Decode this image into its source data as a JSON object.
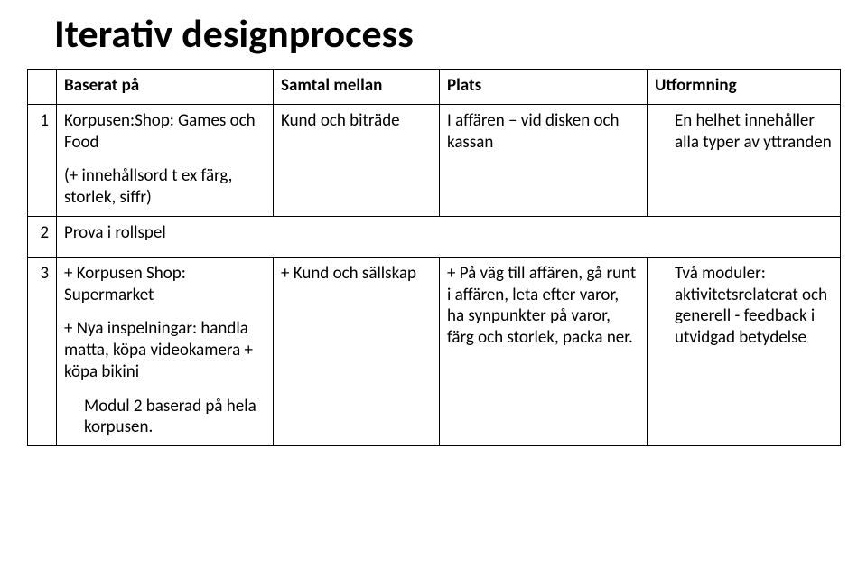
{
  "title": "Iterativ designprocess",
  "headers": {
    "num": "",
    "based": "Baserat på",
    "conv": "Samtal mellan",
    "place": "Plats",
    "form": "Utformning"
  },
  "row1": {
    "num": "1",
    "based_line1": "Korpusen:Shop: Games och Food",
    "based_line2": "(+ innehållsord t  ex färg, storlek, siffr)",
    "conv": "Kund och biträde",
    "place": "I affären – vid disken och kassan",
    "form": "En helhet innehåller alla typer av yttranden"
  },
  "row2": {
    "num": "2",
    "based": "Prova i rollspel"
  },
  "row3": {
    "num": "3",
    "based_line1": "+ Korpusen Shop: Supermarket",
    "based_line2": "+ Nya inspelningar: handla matta, köpa videokamera + köpa bikini",
    "based_line3": "Modul 2 baserad på hela korpusen.",
    "conv": "+ Kund och sällskap",
    "place": "+  På väg till affären, gå runt i affären, leta efter varor, ha synpunkter på varor, färg och storlek, packa ner.",
    "form": "Två moduler: aktivitetsrelaterat och generell - feedback i utvidgad betydelse"
  }
}
